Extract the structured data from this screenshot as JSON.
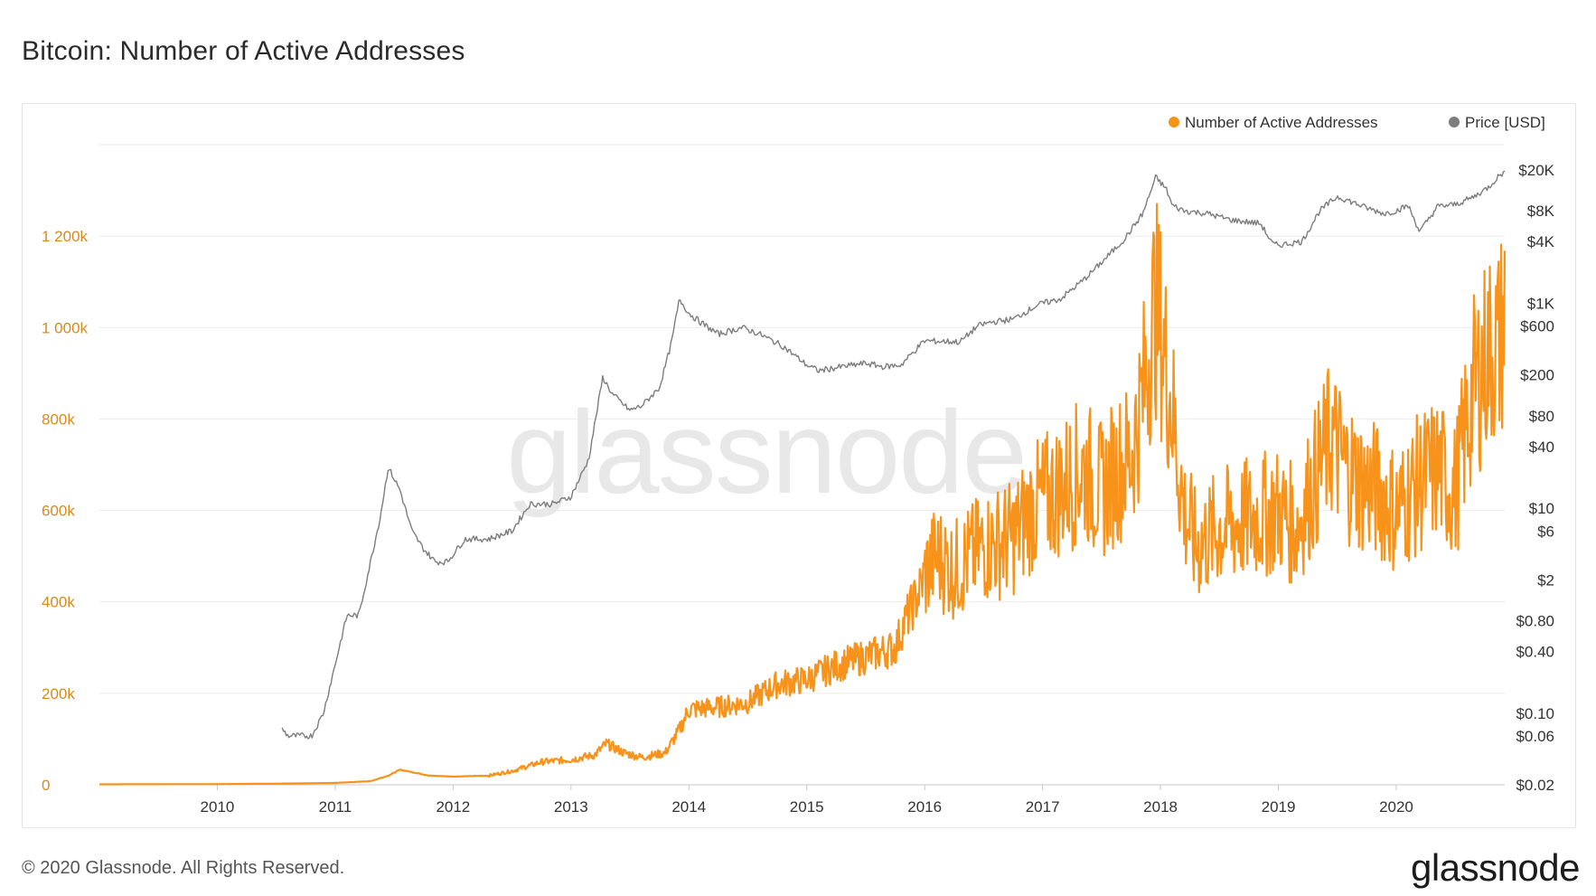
{
  "header": {
    "title": "Bitcoin: Number of Active Addresses"
  },
  "footer": {
    "copyright": "© 2020 Glassnode. All Rights Reserved.",
    "brand": "glassnode"
  },
  "watermark": "glassnode",
  "colors": {
    "addresses": "#f7931a",
    "price": "#7d7d7d",
    "left_axis": "#d98a1c",
    "grid": "#ececec"
  },
  "chart_data": {
    "type": "line",
    "title": "Bitcoin: Number of Active Addresses",
    "legend": {
      "placement": "top-right",
      "entries": [
        "Number of Active Addresses",
        "Price [USD]"
      ]
    },
    "grid": true,
    "x_axis": {
      "type": "time",
      "range": [
        2009.0,
        2020.92
      ],
      "tick_labels": [
        "2010",
        "2011",
        "2012",
        "2013",
        "2014",
        "2015",
        "2016",
        "2017",
        "2018",
        "2019",
        "2020"
      ],
      "tick_values": [
        2010,
        2011,
        2012,
        2013,
        2014,
        2015,
        2016,
        2017,
        2018,
        2019,
        2020
      ]
    },
    "y_left": {
      "range": [
        0,
        1400000
      ],
      "tick_labels": [
        "0",
        "200k",
        "400k",
        "600k",
        "800k",
        "1 000k",
        "1 200k"
      ],
      "tick_values": [
        0,
        200000,
        400000,
        600000,
        800000,
        1000000,
        1200000
      ]
    },
    "y_right": {
      "scale": "log",
      "range": [
        0.02,
        20000
      ],
      "tick_labels": [
        "$20K",
        "$8K",
        "$4K",
        "$1K",
        "$600",
        "$200",
        "$80",
        "$40",
        "$10",
        "$6",
        "$2",
        "$0.80",
        "$0.40",
        "$0.10",
        "$0.06",
        "$0.02"
      ],
      "tick_values": [
        20000,
        8000,
        4000,
        1000,
        600,
        200,
        80,
        40,
        10,
        6,
        2,
        0.8,
        0.4,
        0.1,
        0.06,
        0.02
      ]
    },
    "series": [
      {
        "name": "Number of Active Addresses",
        "axis": "left",
        "color": "#f7931a",
        "x": [
          2009.0,
          2010.0,
          2010.5,
          2011.0,
          2011.3,
          2011.45,
          2011.55,
          2011.8,
          2012.0,
          2012.3,
          2012.5,
          2012.75,
          2013.0,
          2013.2,
          2013.3,
          2013.45,
          2013.6,
          2013.8,
          2013.92,
          2014.0,
          2014.25,
          2014.5,
          2014.75,
          2015.0,
          2015.25,
          2015.5,
          2015.75,
          2015.82,
          2015.95,
          2016.0,
          2016.1,
          2016.25,
          2016.5,
          2016.75,
          2016.9,
          2017.0,
          2017.15,
          2017.35,
          2017.5,
          2017.6,
          2017.75,
          2017.85,
          2017.95,
          2018.0,
          2018.1,
          2018.2,
          2018.3,
          2018.5,
          2018.75,
          2019.0,
          2019.15,
          2019.3,
          2019.45,
          2019.55,
          2019.7,
          2019.85,
          2020.0,
          2020.2,
          2020.35,
          2020.5,
          2020.65,
          2020.78,
          2020.88,
          2020.92
        ],
        "y": [
          1000,
          1500,
          2500,
          4000,
          8000,
          20000,
          33000,
          20000,
          18000,
          20000,
          30000,
          50000,
          55000,
          65000,
          90000,
          70000,
          60000,
          70000,
          120000,
          165000,
          170000,
          180000,
          220000,
          230000,
          260000,
          280000,
          300000,
          350000,
          420000,
          460000,
          500000,
          470000,
          520000,
          540000,
          600000,
          620000,
          650000,
          690000,
          640000,
          680000,
          720000,
          850000,
          1050000,
          1000000,
          820000,
          600000,
          520000,
          560000,
          580000,
          600000,
          560000,
          660000,
          760000,
          700000,
          660000,
          640000,
          600000,
          660000,
          690000,
          640000,
          860000,
          950000,
          960000,
          1040000
        ]
      },
      {
        "name": "Price [USD]",
        "axis": "right",
        "color": "#7d7d7d",
        "x": [
          2010.55,
          2010.6,
          2010.8,
          2010.9,
          2011.0,
          2011.1,
          2011.2,
          2011.3,
          2011.38,
          2011.45,
          2011.55,
          2011.65,
          2011.75,
          2011.85,
          2011.95,
          2012.1,
          2012.3,
          2012.5,
          2012.65,
          2012.85,
          2013.0,
          2013.15,
          2013.27,
          2013.35,
          2013.5,
          2013.6,
          2013.75,
          2013.85,
          2013.92,
          2014.0,
          2014.1,
          2014.25,
          2014.45,
          2014.6,
          2014.8,
          2015.0,
          2015.1,
          2015.3,
          2015.5,
          2015.65,
          2015.8,
          2015.95,
          2016.0,
          2016.3,
          2016.45,
          2016.55,
          2016.75,
          2016.95,
          2017.0,
          2017.15,
          2017.35,
          2017.5,
          2017.7,
          2017.85,
          2017.96,
          2018.05,
          2018.1,
          2018.2,
          2018.4,
          2018.6,
          2018.85,
          2018.95,
          2019.0,
          2019.2,
          2019.35,
          2019.5,
          2019.6,
          2019.75,
          2019.9,
          2020.0,
          2020.1,
          2020.2,
          2020.35,
          2020.5,
          2020.65,
          2020.78,
          2020.88,
          2020.92
        ],
        "y": [
          0.07,
          0.06,
          0.06,
          0.1,
          0.3,
          0.9,
          0.9,
          3,
          8,
          25,
          15,
          6,
          4,
          3,
          3,
          5,
          5,
          6,
          11,
          11,
          13,
          30,
          190,
          130,
          90,
          100,
          150,
          400,
          1100,
          800,
          650,
          500,
          580,
          500,
          380,
          250,
          220,
          240,
          260,
          240,
          250,
          380,
          430,
          420,
          600,
          650,
          700,
          950,
          1000,
          1100,
          1700,
          2500,
          4300,
          7500,
          17000,
          13000,
          9000,
          8000,
          7500,
          6500,
          6000,
          3800,
          3700,
          4000,
          8000,
          11000,
          10000,
          8500,
          7500,
          8000,
          9000,
          5000,
          8800,
          9200,
          10800,
          13500,
          18000,
          19000
        ]
      }
    ]
  }
}
